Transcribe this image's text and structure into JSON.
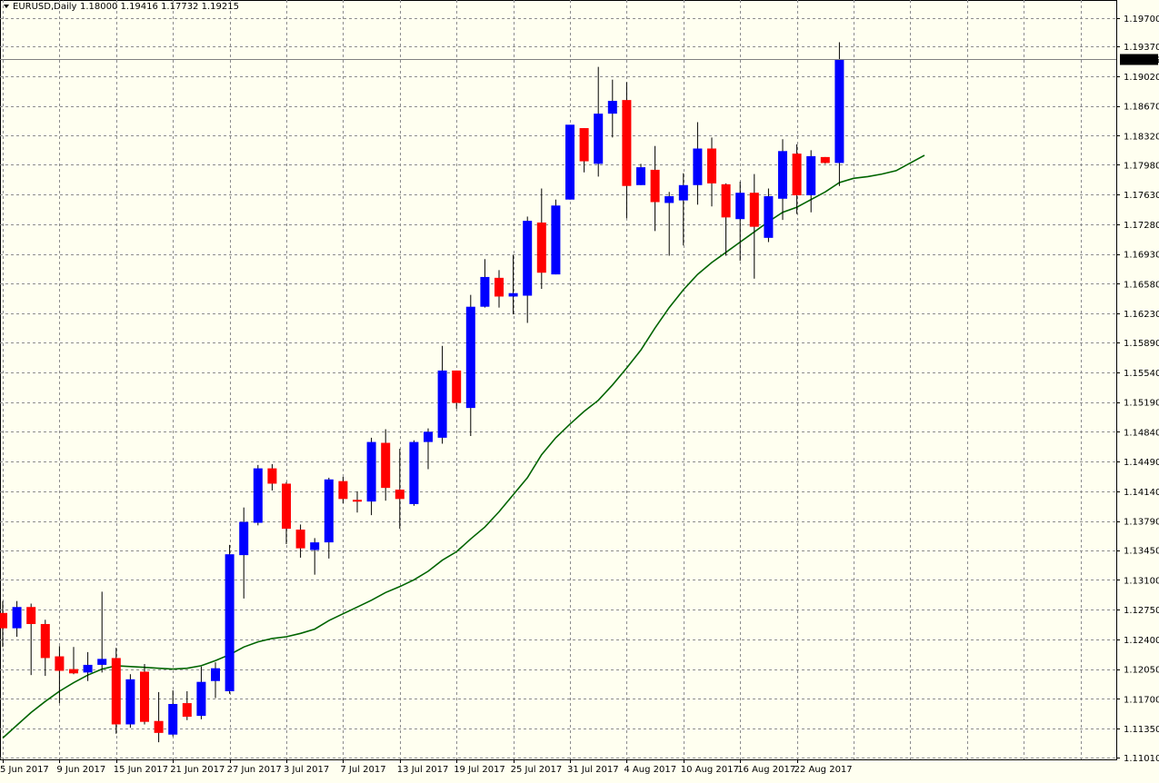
{
  "header": {
    "symbol": "EURUSD,Daily",
    "ohlc": "1.18000 1.19416 1.17732 1.19215"
  },
  "current_price_label": "1.19215",
  "colors": {
    "background": "#fffff0",
    "grid": "#8c8c8c",
    "bull": "#0000ff",
    "bear": "#ff0000",
    "wick": "#000000",
    "ma": "#006400",
    "price_line": "#808080",
    "price_label_bg": "#000000",
    "price_label_fg": "#ffffff"
  },
  "chart_data": {
    "type": "candlestick",
    "title": "EURUSD,Daily",
    "ylim": [
      1.1101,
      1.1982
    ],
    "y_ticks": [
      "1.19700",
      "1.19370",
      "1.19020",
      "1.18670",
      "1.18320",
      "1.17980",
      "1.17630",
      "1.17280",
      "1.16930",
      "1.16580",
      "1.16230",
      "1.15890",
      "1.15540",
      "1.15190",
      "1.14840",
      "1.14490",
      "1.14140",
      "1.13790",
      "1.13450",
      "1.13100",
      "1.12750",
      "1.12400",
      "1.12050",
      "1.11700",
      "1.11350",
      "1.11010"
    ],
    "x_ticks": [
      "5 Jun 2017",
      "9 Jun 2017",
      "15 Jun 2017",
      "21 Jun 2017",
      "27 Jun 2017",
      "3 Jul 2017",
      "7 Jul 2017",
      "13 Jul 2017",
      "19 Jul 2017",
      "25 Jul 2017",
      "31 Jul 2017",
      "4 Aug 2017",
      "10 Aug 2017",
      "16 Aug 2017",
      "22 Aug 2017"
    ],
    "candles": [
      {
        "o": 1.1271,
        "h": 1.1285,
        "l": 1.1231,
        "c": 1.1253
      },
      {
        "o": 1.1253,
        "h": 1.1285,
        "l": 1.1243,
        "c": 1.1278
      },
      {
        "o": 1.1278,
        "h": 1.1282,
        "l": 1.1198,
        "c": 1.1258
      },
      {
        "o": 1.1258,
        "h": 1.1263,
        "l": 1.1197,
        "c": 1.1218
      },
      {
        "o": 1.122,
        "h": 1.1232,
        "l": 1.1165,
        "c": 1.1203
      },
      {
        "o": 1.1205,
        "h": 1.1231,
        "l": 1.1199,
        "c": 1.12
      },
      {
        "o": 1.1201,
        "h": 1.1225,
        "l": 1.1191,
        "c": 1.121
      },
      {
        "o": 1.121,
        "h": 1.1296,
        "l": 1.1201,
        "c": 1.1217
      },
      {
        "o": 1.1218,
        "h": 1.123,
        "l": 1.1129,
        "c": 1.114
      },
      {
        "o": 1.114,
        "h": 1.1199,
        "l": 1.1136,
        "c": 1.1193
      },
      {
        "o": 1.1202,
        "h": 1.1211,
        "l": 1.114,
        "c": 1.1143
      },
      {
        "o": 1.1144,
        "h": 1.1178,
        "l": 1.1119,
        "c": 1.113
      },
      {
        "o": 1.1128,
        "h": 1.118,
        "l": 1.1126,
        "c": 1.1164
      },
      {
        "o": 1.1165,
        "h": 1.1179,
        "l": 1.1145,
        "c": 1.1149
      },
      {
        "o": 1.115,
        "h": 1.1208,
        "l": 1.1146,
        "c": 1.119
      },
      {
        "o": 1.1191,
        "h": 1.1213,
        "l": 1.1171,
        "c": 1.1206
      },
      {
        "o": 1.1179,
        "h": 1.1351,
        "l": 1.1176,
        "c": 1.134
      },
      {
        "o": 1.1339,
        "h": 1.1395,
        "l": 1.1288,
        "c": 1.1378
      },
      {
        "o": 1.1377,
        "h": 1.1445,
        "l": 1.1374,
        "c": 1.1441
      },
      {
        "o": 1.1441,
        "h": 1.1446,
        "l": 1.1415,
        "c": 1.1423
      },
      {
        "o": 1.1423,
        "h": 1.1425,
        "l": 1.1352,
        "c": 1.137
      },
      {
        "o": 1.1369,
        "h": 1.1375,
        "l": 1.1336,
        "c": 1.1347
      },
      {
        "o": 1.1345,
        "h": 1.1359,
        "l": 1.1316,
        "c": 1.1354
      },
      {
        "o": 1.1354,
        "h": 1.143,
        "l": 1.1335,
        "c": 1.1428
      },
      {
        "o": 1.1426,
        "h": 1.1431,
        "l": 1.14,
        "c": 1.1405
      },
      {
        "o": 1.1404,
        "h": 1.1414,
        "l": 1.1389,
        "c": 1.1402
      },
      {
        "o": 1.1402,
        "h": 1.1477,
        "l": 1.1386,
        "c": 1.1472
      },
      {
        "o": 1.1471,
        "h": 1.1487,
        "l": 1.1403,
        "c": 1.1418
      },
      {
        "o": 1.1416,
        "h": 1.1464,
        "l": 1.137,
        "c": 1.1405
      },
      {
        "o": 1.1399,
        "h": 1.1474,
        "l": 1.1397,
        "c": 1.1472
      },
      {
        "o": 1.1472,
        "h": 1.1488,
        "l": 1.144,
        "c": 1.1484
      },
      {
        "o": 1.1477,
        "h": 1.1585,
        "l": 1.147,
        "c": 1.1556
      },
      {
        "o": 1.1556,
        "h": 1.1556,
        "l": 1.1511,
        "c": 1.1518
      },
      {
        "o": 1.1512,
        "h": 1.1645,
        "l": 1.1479,
        "c": 1.1631
      },
      {
        "o": 1.1631,
        "h": 1.1687,
        "l": 1.163,
        "c": 1.1666
      },
      {
        "o": 1.1665,
        "h": 1.1674,
        "l": 1.163,
        "c": 1.1643
      },
      {
        "o": 1.1643,
        "h": 1.1692,
        "l": 1.1622,
        "c": 1.1647
      },
      {
        "o": 1.1644,
        "h": 1.1737,
        "l": 1.1612,
        "c": 1.1732
      },
      {
        "o": 1.173,
        "h": 1.177,
        "l": 1.1652,
        "c": 1.1671
      },
      {
        "o": 1.1669,
        "h": 1.1757,
        "l": 1.1669,
        "c": 1.175
      },
      {
        "o": 1.1757,
        "h": 1.1844,
        "l": 1.1757,
        "c": 1.1845
      },
      {
        "o": 1.1841,
        "h": 1.1841,
        "l": 1.1789,
        "c": 1.1802
      },
      {
        "o": 1.1799,
        "h": 1.1913,
        "l": 1.1784,
        "c": 1.1858
      },
      {
        "o": 1.1858,
        "h": 1.1898,
        "l": 1.183,
        "c": 1.1873
      },
      {
        "o": 1.1874,
        "h": 1.1895,
        "l": 1.1735,
        "c": 1.1773
      },
      {
        "o": 1.1774,
        "h": 1.1799,
        "l": 1.1774,
        "c": 1.1795
      },
      {
        "o": 1.1792,
        "h": 1.182,
        "l": 1.172,
        "c": 1.1754
      },
      {
        "o": 1.1753,
        "h": 1.1766,
        "l": 1.1691,
        "c": 1.1761
      },
      {
        "o": 1.1756,
        "h": 1.1788,
        "l": 1.1703,
        "c": 1.1774
      },
      {
        "o": 1.1774,
        "h": 1.1848,
        "l": 1.1751,
        "c": 1.1817
      },
      {
        "o": 1.1817,
        "h": 1.183,
        "l": 1.1749,
        "c": 1.1776
      },
      {
        "o": 1.1775,
        "h": 1.1776,
        "l": 1.1691,
        "c": 1.1736
      },
      {
        "o": 1.1734,
        "h": 1.1778,
        "l": 1.1685,
        "c": 1.1765
      },
      {
        "o": 1.1765,
        "h": 1.1787,
        "l": 1.1664,
        "c": 1.1725
      },
      {
        "o": 1.1712,
        "h": 1.177,
        "l": 1.1707,
        "c": 1.1761
      },
      {
        "o": 1.1758,
        "h": 1.1828,
        "l": 1.1733,
        "c": 1.1814
      },
      {
        "o": 1.1811,
        "h": 1.1822,
        "l": 1.174,
        "c": 1.1762
      },
      {
        "o": 1.1762,
        "h": 1.1815,
        "l": 1.1742,
        "c": 1.1808
      },
      {
        "o": 1.1807,
        "h": 1.1807,
        "l": 1.1799,
        "c": 1.18
      },
      {
        "o": 1.18,
        "h": 1.1942,
        "l": 1.1773,
        "c": 1.1922
      }
    ],
    "ma": [
      1.1124,
      1.1139,
      1.1154,
      1.1167,
      1.1179,
      1.1189,
      1.1198,
      1.1205,
      1.1209,
      1.1208,
      1.1207,
      1.1206,
      1.1205,
      1.1206,
      1.1209,
      1.1215,
      1.1222,
      1.1231,
      1.1237,
      1.1241,
      1.1243,
      1.1247,
      1.1252,
      1.1262,
      1.127,
      1.1278,
      1.1286,
      1.1295,
      1.1302,
      1.131,
      1.132,
      1.1333,
      1.1343,
      1.1358,
      1.1372,
      1.139,
      1.141,
      1.143,
      1.1457,
      1.1477,
      1.1493,
      1.1508,
      1.1521,
      1.1539,
      1.1559,
      1.158,
      1.1606,
      1.163,
      1.1651,
      1.1669,
      1.1683,
      1.1695,
      1.1707,
      1.1719,
      1.1731,
      1.1742,
      1.1748,
      1.1757,
      1.1766,
      1.1777,
      1.1782,
      1.1784,
      1.1787,
      1.1791,
      1.18,
      1.1809
    ]
  }
}
